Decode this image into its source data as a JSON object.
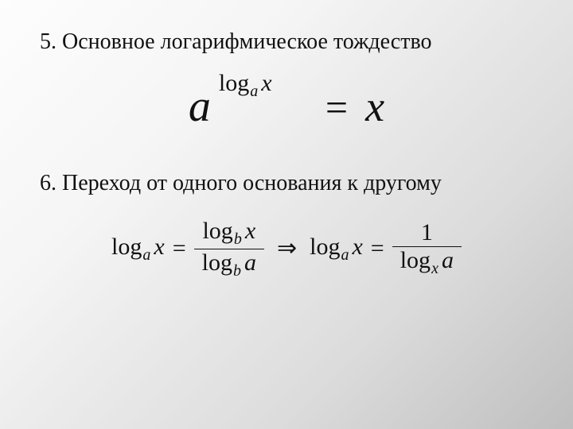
{
  "background": {
    "gradient_from": "#fdfdfd",
    "gradient_to": "#bfbfbf"
  },
  "text_color": "#111111",
  "heading5": "5. Основное логарифмическое тождество",
  "heading6": "6. Переход от одного основания к другому",
  "formula1": {
    "base": "a",
    "exp_log": "log",
    "exp_sub": "a",
    "exp_arg": "x",
    "equals": "=",
    "rhs": "x",
    "font_sizes": {
      "base": 56,
      "exponent": 30,
      "exp_sub": 20,
      "equals": 50,
      "rhs": 54
    }
  },
  "formula2": {
    "lhs_log": "log",
    "lhs_sub": "a",
    "lhs_arg": "x",
    "eq1": "=",
    "frac1_num_log": "log",
    "frac1_num_sub": "b",
    "frac1_num_arg": "x",
    "frac1_den_log": "log",
    "frac1_den_sub": "b",
    "frac1_den_arg": "a",
    "arrow": "⇒",
    "mid_log": "log",
    "mid_sub": "a",
    "mid_arg": "x",
    "eq2": "=",
    "frac2_num": "1",
    "frac2_den_log": "log",
    "frac2_den_sub": "x",
    "frac2_den_arg": "a",
    "font_size": 30,
    "sub_font_size": 20
  }
}
